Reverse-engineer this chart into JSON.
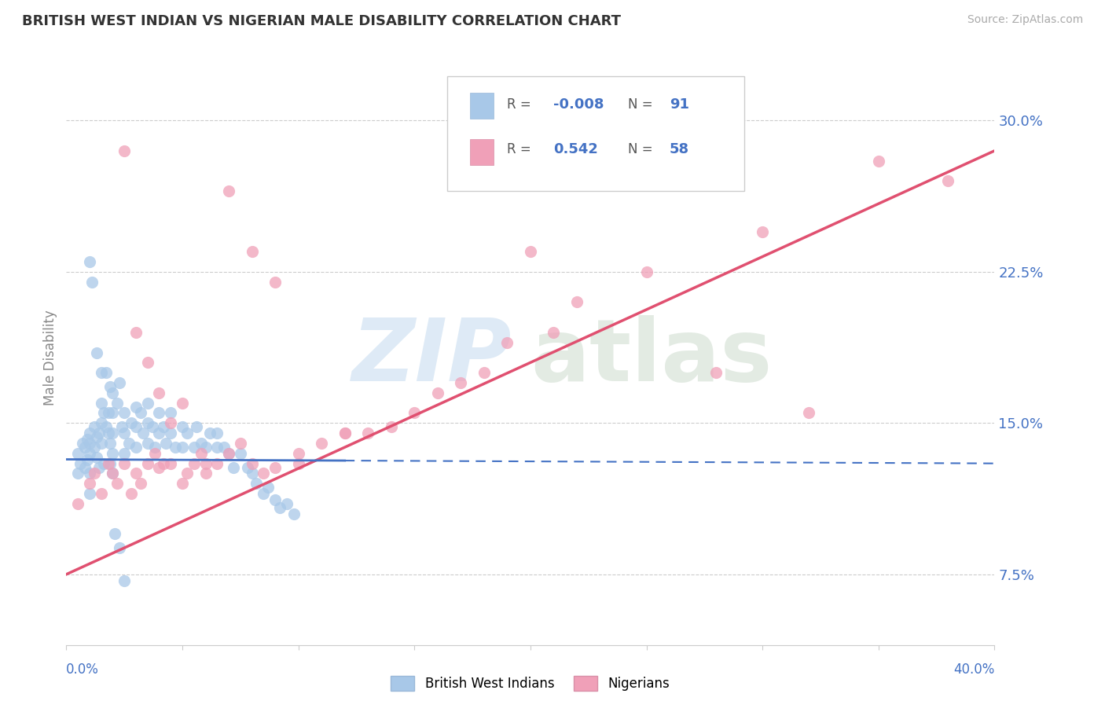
{
  "title": "BRITISH WEST INDIAN VS NIGERIAN MALE DISABILITY CORRELATION CHART",
  "source": "Source: ZipAtlas.com",
  "ylabel": "Male Disability",
  "y_ticks": [
    0.075,
    0.15,
    0.225,
    0.3
  ],
  "y_tick_labels": [
    "7.5%",
    "15.0%",
    "22.5%",
    "30.0%"
  ],
  "x_lim": [
    0.0,
    0.4
  ],
  "y_lim": [
    0.04,
    0.325
  ],
  "color_blue": "#a8c8e8",
  "color_pink": "#f0a0b8",
  "color_blue_line": "#4472c4",
  "color_pink_line": "#e05070",
  "color_blue_text": "#4472c4",
  "blue_R": -0.008,
  "blue_N": 91,
  "pink_R": 0.542,
  "pink_N": 58,
  "blue_line_y0": 0.132,
  "blue_line_y1": 0.13,
  "pink_line_y0": 0.075,
  "pink_line_y1": 0.285,
  "blue_scatter_x": [
    0.005,
    0.005,
    0.006,
    0.007,
    0.008,
    0.008,
    0.009,
    0.009,
    0.01,
    0.01,
    0.01,
    0.01,
    0.01,
    0.012,
    0.012,
    0.013,
    0.013,
    0.014,
    0.014,
    0.015,
    0.015,
    0.015,
    0.016,
    0.016,
    0.017,
    0.018,
    0.018,
    0.019,
    0.019,
    0.02,
    0.02,
    0.02,
    0.02,
    0.02,
    0.022,
    0.023,
    0.024,
    0.025,
    0.025,
    0.025,
    0.027,
    0.028,
    0.03,
    0.03,
    0.03,
    0.032,
    0.033,
    0.035,
    0.035,
    0.035,
    0.037,
    0.038,
    0.04,
    0.04,
    0.042,
    0.043,
    0.045,
    0.045,
    0.047,
    0.05,
    0.05,
    0.052,
    0.055,
    0.056,
    0.058,
    0.06,
    0.062,
    0.065,
    0.065,
    0.068,
    0.07,
    0.072,
    0.075,
    0.078,
    0.08,
    0.082,
    0.085,
    0.087,
    0.09,
    0.092,
    0.095,
    0.098,
    0.01,
    0.011,
    0.013,
    0.015,
    0.017,
    0.019,
    0.021,
    0.023,
    0.025
  ],
  "blue_scatter_y": [
    0.135,
    0.125,
    0.13,
    0.14,
    0.128,
    0.138,
    0.132,
    0.142,
    0.14,
    0.145,
    0.135,
    0.125,
    0.115,
    0.148,
    0.138,
    0.143,
    0.133,
    0.145,
    0.128,
    0.15,
    0.16,
    0.14,
    0.155,
    0.13,
    0.148,
    0.155,
    0.145,
    0.14,
    0.13,
    0.165,
    0.155,
    0.145,
    0.135,
    0.125,
    0.16,
    0.17,
    0.148,
    0.155,
    0.145,
    0.135,
    0.14,
    0.15,
    0.158,
    0.148,
    0.138,
    0.155,
    0.145,
    0.16,
    0.15,
    0.14,
    0.148,
    0.138,
    0.155,
    0.145,
    0.148,
    0.14,
    0.155,
    0.145,
    0.138,
    0.148,
    0.138,
    0.145,
    0.138,
    0.148,
    0.14,
    0.138,
    0.145,
    0.138,
    0.145,
    0.138,
    0.135,
    0.128,
    0.135,
    0.128,
    0.125,
    0.12,
    0.115,
    0.118,
    0.112,
    0.108,
    0.11,
    0.105,
    0.23,
    0.22,
    0.185,
    0.175,
    0.175,
    0.168,
    0.095,
    0.088,
    0.072
  ],
  "pink_scatter_x": [
    0.005,
    0.01,
    0.012,
    0.015,
    0.018,
    0.02,
    0.022,
    0.025,
    0.028,
    0.03,
    0.032,
    0.035,
    0.038,
    0.04,
    0.042,
    0.045,
    0.05,
    0.052,
    0.055,
    0.058,
    0.06,
    0.065,
    0.07,
    0.075,
    0.08,
    0.085,
    0.09,
    0.1,
    0.11,
    0.12,
    0.13,
    0.14,
    0.15,
    0.16,
    0.17,
    0.18,
    0.19,
    0.2,
    0.21,
    0.22,
    0.025,
    0.03,
    0.035,
    0.04,
    0.045,
    0.05,
    0.06,
    0.07,
    0.08,
    0.09,
    0.1,
    0.12,
    0.25,
    0.28,
    0.3,
    0.32,
    0.35,
    0.38
  ],
  "pink_scatter_y": [
    0.11,
    0.12,
    0.125,
    0.115,
    0.13,
    0.125,
    0.12,
    0.13,
    0.115,
    0.125,
    0.12,
    0.13,
    0.135,
    0.128,
    0.13,
    0.13,
    0.12,
    0.125,
    0.13,
    0.135,
    0.125,
    0.13,
    0.135,
    0.14,
    0.13,
    0.125,
    0.128,
    0.135,
    0.14,
    0.145,
    0.145,
    0.148,
    0.155,
    0.165,
    0.17,
    0.175,
    0.19,
    0.235,
    0.195,
    0.21,
    0.285,
    0.195,
    0.18,
    0.165,
    0.15,
    0.16,
    0.13,
    0.265,
    0.235,
    0.22,
    0.13,
    0.145,
    0.225,
    0.175,
    0.245,
    0.155,
    0.28,
    0.27
  ]
}
